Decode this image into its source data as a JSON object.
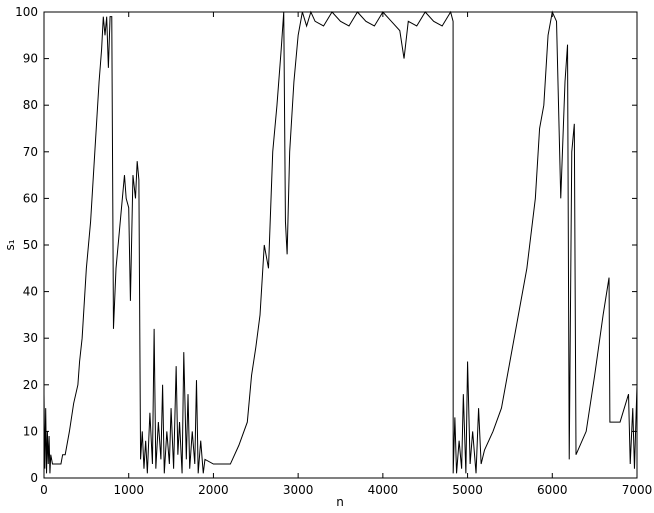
{
  "chart_data": {
    "type": "line",
    "xlabel": "n",
    "ylabel": "s₁",
    "xlim": [
      0,
      7000
    ],
    "ylim": [
      0,
      100
    ],
    "xticks": [
      0,
      1000,
      2000,
      3000,
      4000,
      5000,
      6000,
      7000
    ],
    "yticks": [
      0,
      10,
      20,
      30,
      40,
      50,
      60,
      70,
      80,
      90,
      100
    ],
    "grid": false,
    "series": [
      {
        "name": "s1",
        "color": "#000000",
        "x": [
          0,
          10,
          20,
          30,
          40,
          50,
          60,
          70,
          80,
          100,
          150,
          200,
          220,
          250,
          300,
          350,
          400,
          420,
          450,
          500,
          550,
          600,
          650,
          680,
          700,
          720,
          740,
          760,
          780,
          800,
          820,
          850,
          900,
          950,
          970,
          1000,
          1020,
          1050,
          1080,
          1100,
          1120,
          1140,
          1160,
          1180,
          1200,
          1220,
          1250,
          1280,
          1300,
          1320,
          1350,
          1380,
          1400,
          1420,
          1450,
          1480,
          1500,
          1530,
          1560,
          1580,
          1600,
          1630,
          1650,
          1680,
          1700,
          1720,
          1750,
          1780,
          1800,
          1820,
          1850,
          1880,
          1900,
          2000,
          2200,
          2300,
          2400,
          2450,
          2500,
          2550,
          2600,
          2650,
          2700,
          2750,
          2800,
          2830,
          2850,
          2870,
          2900,
          2950,
          3000,
          3050,
          3100,
          3150,
          3200,
          3300,
          3400,
          3500,
          3600,
          3700,
          3800,
          3900,
          4000,
          4100,
          4200,
          4250,
          4300,
          4400,
          4500,
          4600,
          4700,
          4800,
          4829,
          4830,
          4850,
          4870,
          4900,
          4930,
          4950,
          4980,
          5000,
          5030,
          5060,
          5100,
          5130,
          5160,
          5200,
          5300,
          5400,
          5500,
          5550,
          5600,
          5700,
          5800,
          5850,
          5900,
          5950,
          6000,
          6050,
          6100,
          6150,
          6180,
          6200,
          6230,
          6260,
          6280,
          6400,
          6500,
          6600,
          6670,
          6680,
          6800,
          6900,
          6920,
          6950,
          6970,
          7000
        ],
        "values": [
          18,
          2,
          15,
          1,
          10,
          3,
          9,
          1,
          5,
          3,
          3,
          3,
          5,
          5,
          10,
          16,
          20,
          25,
          30,
          45,
          55,
          70,
          85,
          92,
          99,
          95,
          99,
          88,
          99,
          99,
          32,
          45,
          55,
          65,
          60,
          58,
          38,
          65,
          60,
          68,
          64,
          4,
          10,
          2,
          8,
          1,
          14,
          3,
          32,
          2,
          12,
          4,
          20,
          1,
          10,
          3,
          15,
          2,
          24,
          5,
          12,
          1,
          27,
          4,
          18,
          2,
          10,
          3,
          21,
          1,
          8,
          1,
          4,
          3,
          3,
          7,
          12,
          22,
          28,
          35,
          50,
          45,
          70,
          80,
          92,
          100,
          55,
          48,
          70,
          85,
          95,
          100,
          97,
          100,
          98,
          97,
          100,
          98,
          97,
          100,
          98,
          97,
          100,
          98,
          96,
          90,
          98,
          97,
          100,
          98,
          97,
          100,
          98,
          1,
          13,
          1,
          8,
          2,
          18,
          1,
          25,
          3,
          10,
          1,
          15,
          3,
          6,
          10,
          15,
          25,
          30,
          35,
          45,
          60,
          75,
          80,
          95,
          100,
          98,
          60,
          85,
          93,
          4,
          70,
          76,
          5,
          10,
          22,
          35,
          43,
          12,
          12,
          18,
          3,
          15,
          2,
          20
        ]
      }
    ]
  }
}
